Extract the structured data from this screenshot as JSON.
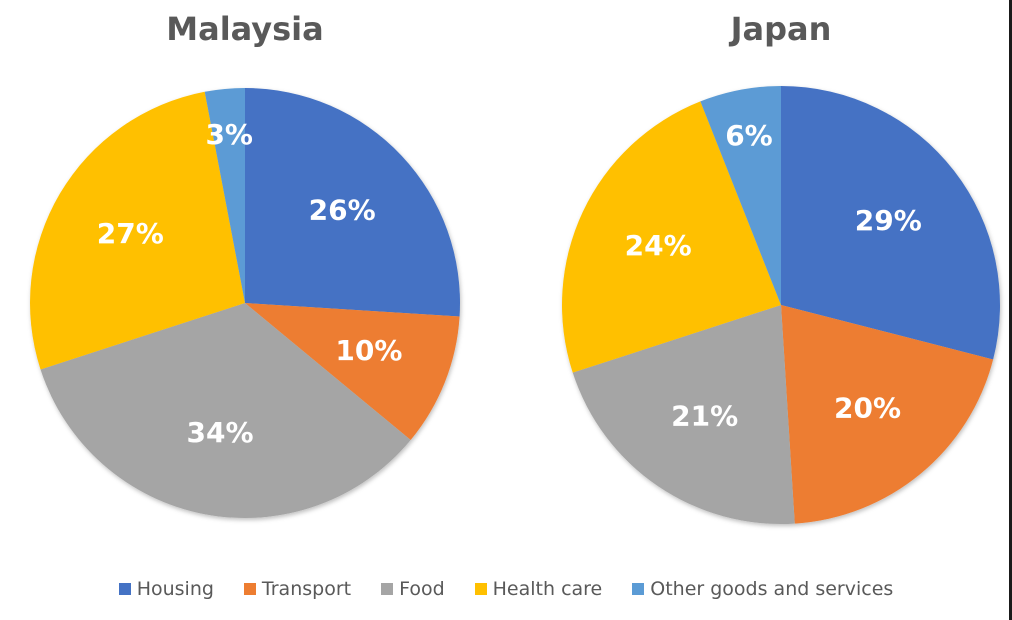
{
  "chart_data": [
    {
      "type": "pie",
      "title": "Malaysia",
      "categories": [
        "Housing",
        "Transport",
        "Food",
        "Health care",
        "Other goods and services"
      ],
      "values": [
        26,
        10,
        34,
        27,
        3
      ],
      "labels": [
        "26%",
        "10%",
        "34%",
        "27%",
        "3%"
      ],
      "legend_position": "bottom"
    },
    {
      "type": "pie",
      "title": "Japan",
      "categories": [
        "Housing",
        "Transport",
        "Food",
        "Health care",
        "Other goods and services"
      ],
      "values": [
        29,
        20,
        21,
        24,
        6
      ],
      "labels": [
        "29%",
        "20%",
        "21%",
        "24%",
        "6%"
      ],
      "legend_position": "bottom"
    }
  ],
  "titles": {
    "left": "Malaysia",
    "right": "Japan"
  },
  "colors": {
    "Housing": "#4472c4",
    "Transport": "#ed7d31",
    "Food": "#a5a5a5",
    "Health care": "#ffc000",
    "Other goods and services": "#5b9bd5"
  },
  "legend": [
    {
      "label": "Housing",
      "color": "#4472c4"
    },
    {
      "label": "Transport",
      "color": "#ed7d31"
    },
    {
      "label": "Food",
      "color": "#a5a5a5"
    },
    {
      "label": "Health care",
      "color": "#ffc000"
    },
    {
      "label": "Other goods and services",
      "color": "#5b9bd5"
    }
  ]
}
